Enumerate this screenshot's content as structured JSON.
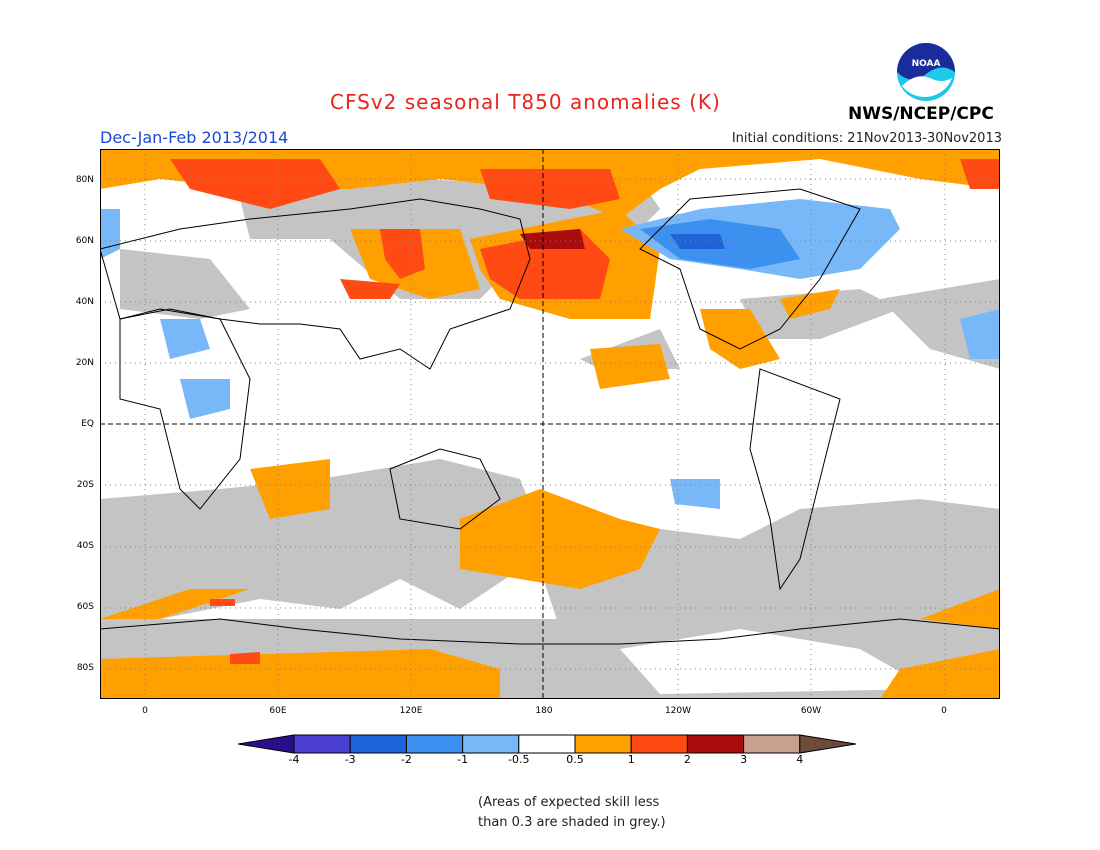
{
  "header": {
    "title": "CFSv2 seasonal T850 anomalies (K)",
    "season": "Dec-Jan-Feb 2013/2014",
    "initial_conditions": "Initial conditions: 21Nov2013-30Nov2013",
    "organization": "NWS/NCEP/CPC",
    "logo_text": "NOAA"
  },
  "map": {
    "lat_labels": [
      "80N",
      "60N",
      "40N",
      "20N",
      "EQ",
      "20S",
      "40S",
      "60S",
      "80S"
    ],
    "lon_labels": [
      "0",
      "60E",
      "120E",
      "180",
      "120W",
      "60W",
      "0"
    ]
  },
  "legend": {
    "levels": [
      "-4",
      "-3",
      "-2",
      "-1",
      "-0.5",
      "0.5",
      "1",
      "2",
      "3",
      "4"
    ],
    "colors": [
      "#2a0f8c",
      "#4a3fd0",
      "#1e64d8",
      "#3c90f0",
      "#78b8f8",
      "#ffffff",
      "#ffa000",
      "#ff4a14",
      "#a80c0c",
      "#c8a090",
      "#6e4a3a"
    ]
  },
  "footnote": {
    "line1": "(Areas of expected skill less",
    "line2": "than 0.3 are shaded in grey.)"
  },
  "colors": {
    "title": "#e8241c",
    "season": "#1c48d8",
    "skill_grey": "#c4c4c4"
  }
}
